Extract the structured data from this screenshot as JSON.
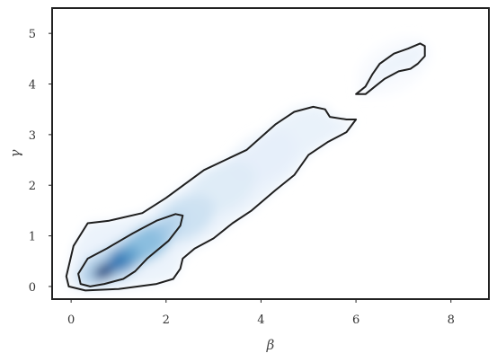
{
  "chart_data": {
    "type": "density-contour",
    "xlabel": "β",
    "ylabel": "γ",
    "xlim": [
      -0.4,
      8.8
    ],
    "ylim": [
      -0.25,
      5.5
    ],
    "x_ticks": [
      0,
      2,
      4,
      6,
      8
    ],
    "y_ticks": [
      0,
      1,
      2,
      3,
      4,
      5
    ],
    "grid": false,
    "colormap": "Blues",
    "contour_color": "#1f1f1f",
    "frame_color": "#222222",
    "density_ridge": [
      {
        "x": 0.7,
        "y": 0.3,
        "density": 1.0
      },
      {
        "x": 1.1,
        "y": 0.55,
        "density": 0.82
      },
      {
        "x": 1.6,
        "y": 0.85,
        "density": 0.5
      },
      {
        "x": 2.4,
        "y": 1.35,
        "density": 0.32
      },
      {
        "x": 3.2,
        "y": 1.95,
        "density": 0.2
      },
      {
        "x": 4.0,
        "y": 2.55,
        "density": 0.13
      },
      {
        "x": 4.8,
        "y": 3.05,
        "density": 0.09
      },
      {
        "x": 6.8,
        "y": 4.35,
        "density": 0.05
      }
    ],
    "contours": [
      {
        "name": "outer",
        "polygons": [
          [
            [
              -0.1,
              0.2
            ],
            [
              0.05,
              0.8
            ],
            [
              0.35,
              1.25
            ],
            [
              0.8,
              1.3
            ],
            [
              1.5,
              1.45
            ],
            [
              2.0,
              1.75
            ],
            [
              2.8,
              2.3
            ],
            [
              3.7,
              2.7
            ],
            [
              4.3,
              3.2
            ],
            [
              4.7,
              3.45
            ],
            [
              5.1,
              3.55
            ],
            [
              5.35,
              3.5
            ],
            [
              5.45,
              3.35
            ],
            [
              5.8,
              3.3
            ],
            [
              6.0,
              3.3
            ],
            [
              5.8,
              3.05
            ],
            [
              5.4,
              2.85
            ],
            [
              5.0,
              2.6
            ],
            [
              4.7,
              2.2
            ],
            [
              4.3,
              1.9
            ],
            [
              3.8,
              1.5
            ],
            [
              3.4,
              1.25
            ],
            [
              3.0,
              0.95
            ],
            [
              2.6,
              0.75
            ],
            [
              2.35,
              0.55
            ],
            [
              2.3,
              0.35
            ],
            [
              2.15,
              0.15
            ],
            [
              1.8,
              0.05
            ],
            [
              1.0,
              -0.05
            ],
            [
              0.3,
              -0.08
            ],
            [
              -0.05,
              0.0
            ],
            [
              -0.1,
              0.2
            ]
          ],
          [
            [
              6.0,
              3.8
            ],
            [
              6.2,
              3.95
            ],
            [
              6.35,
              4.2
            ],
            [
              6.5,
              4.4
            ],
            [
              6.8,
              4.6
            ],
            [
              7.1,
              4.7
            ],
            [
              7.35,
              4.8
            ],
            [
              7.45,
              4.75
            ],
            [
              7.45,
              4.55
            ],
            [
              7.3,
              4.4
            ],
            [
              7.15,
              4.3
            ],
            [
              6.9,
              4.25
            ],
            [
              6.6,
              4.1
            ],
            [
              6.4,
              3.95
            ],
            [
              6.2,
              3.8
            ],
            [
              6.0,
              3.8
            ]
          ]
        ]
      },
      {
        "name": "inner",
        "polygons": [
          [
            [
              0.2,
              0.05
            ],
            [
              0.15,
              0.25
            ],
            [
              0.35,
              0.55
            ],
            [
              0.75,
              0.75
            ],
            [
              1.3,
              1.05
            ],
            [
              1.8,
              1.3
            ],
            [
              2.2,
              1.43
            ],
            [
              2.35,
              1.4
            ],
            [
              2.3,
              1.2
            ],
            [
              2.05,
              0.9
            ],
            [
              1.6,
              0.55
            ],
            [
              1.35,
              0.3
            ],
            [
              1.1,
              0.15
            ],
            [
              0.7,
              0.05
            ],
            [
              0.4,
              0.0
            ],
            [
              0.2,
              0.05
            ]
          ]
        ]
      }
    ]
  }
}
